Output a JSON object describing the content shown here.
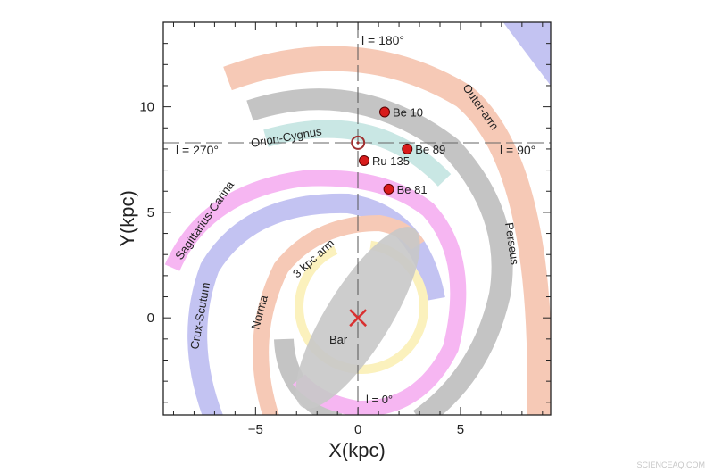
{
  "chart_data": {
    "type": "scatter",
    "xlabel": "X(kpc)",
    "ylabel": "Y(kpc)",
    "xlim": [
      -9.5,
      9.4
    ],
    "ylim": [
      -4.6,
      14
    ],
    "xticks": [
      -5,
      0,
      5
    ],
    "yticks": [
      0,
      5,
      10
    ],
    "grid": false,
    "points": [
      {
        "name": "Be 10",
        "x": 1.3,
        "y": 9.75
      },
      {
        "name": "Be 89",
        "x": 2.4,
        "y": 8.0
      },
      {
        "name": "Ru 135",
        "x": 0.3,
        "y": 7.45
      },
      {
        "name": "Be 81",
        "x": 1.5,
        "y": 6.1
      }
    ],
    "sun": {
      "x": 0,
      "y": 8.3
    },
    "galactic_center": {
      "x": 0,
      "y": 0
    },
    "longitude_labels": {
      "l180": "l = 180°",
      "l90": "l = 90°",
      "l270": "l = 270°",
      "l0": "l = 0°"
    },
    "arm_labels": {
      "outer": "Outer-arm",
      "perseus": "Perseus",
      "orion": "Orion-Cygnus",
      "sagittarius": "Sagittarius-Carina",
      "crux": "Crux-Scutum",
      "norma": "Norma",
      "three_kpc": "3 kpc arm",
      "bar": "Bar"
    },
    "colors": {
      "outer": "#f6c9b6",
      "perseus": "#c4c4c4",
      "orion": "#c9e7e4",
      "sagittarius": "#f6b6f2",
      "crux": "#c3c3f2",
      "norma": "#f6c9b6",
      "three_kpc": "#fbf1bd",
      "bar": "#c8c8c8",
      "cluster": "#d81b1b",
      "center": "#d93030"
    }
  },
  "watermark": "SCIENCEAQ.COM"
}
